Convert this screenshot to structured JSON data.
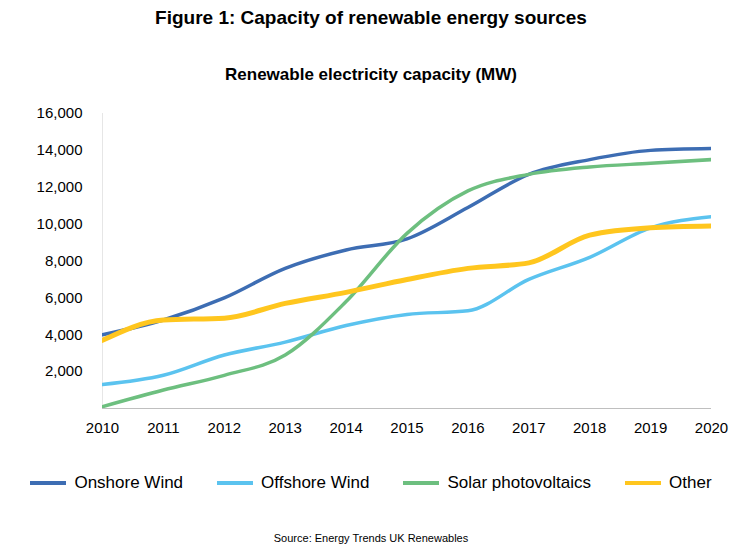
{
  "chart_data": {
    "type": "line",
    "title": "Figure 1: Capacity of renewable energy sources",
    "subtitle": "Renewable electricity capacity (MW)",
    "source": "Source: Energy Trends UK Renewables",
    "x": [
      2010,
      2011,
      2012,
      2013,
      2014,
      2015,
      2016,
      2017,
      2018,
      2019,
      2020
    ],
    "xlim": [
      2010,
      2020
    ],
    "xticks": [
      2010,
      2011,
      2012,
      2013,
      2014,
      2015,
      2016,
      2017,
      2018,
      2019,
      2020
    ],
    "ylim": [
      0,
      16000
    ],
    "yticks": [
      {
        "value": 2000,
        "label": "2,000"
      },
      {
        "value": 4000,
        "label": "4,000"
      },
      {
        "value": 6000,
        "label": "6,000"
      },
      {
        "value": 8000,
        "label": "8,000"
      },
      {
        "value": 10000,
        "label": "10,000"
      },
      {
        "value": 12000,
        "label": "12,000"
      },
      {
        "value": 14000,
        "label": "14,000"
      },
      {
        "value": 16000,
        "label": "16,000"
      }
    ],
    "grid": false,
    "legend": "bottom",
    "series": [
      {
        "name": "Onshore Wind",
        "color": "#3d6db3",
        "values": [
          4000,
          4800,
          6000,
          7600,
          8600,
          9200,
          10900,
          12700,
          13500,
          14000,
          14100
        ]
      },
      {
        "name": "Offshore Wind",
        "color": "#5bc3ef",
        "values": [
          1300,
          1800,
          2900,
          3600,
          4500,
          5100,
          5300,
          7000,
          8200,
          9800,
          10400
        ]
      },
      {
        "name": "Solar photovoltaics",
        "color": "#6dbf7f",
        "values": [
          100,
          1000,
          1800,
          2900,
          5800,
          9500,
          11800,
          12700,
          13100,
          13300,
          13500
        ]
      },
      {
        "name": "Other",
        "color": "#ffc61e",
        "values": [
          3700,
          4800,
          4900,
          5700,
          6300,
          7000,
          7600,
          7900,
          9400,
          9800,
          9900
        ]
      }
    ]
  }
}
